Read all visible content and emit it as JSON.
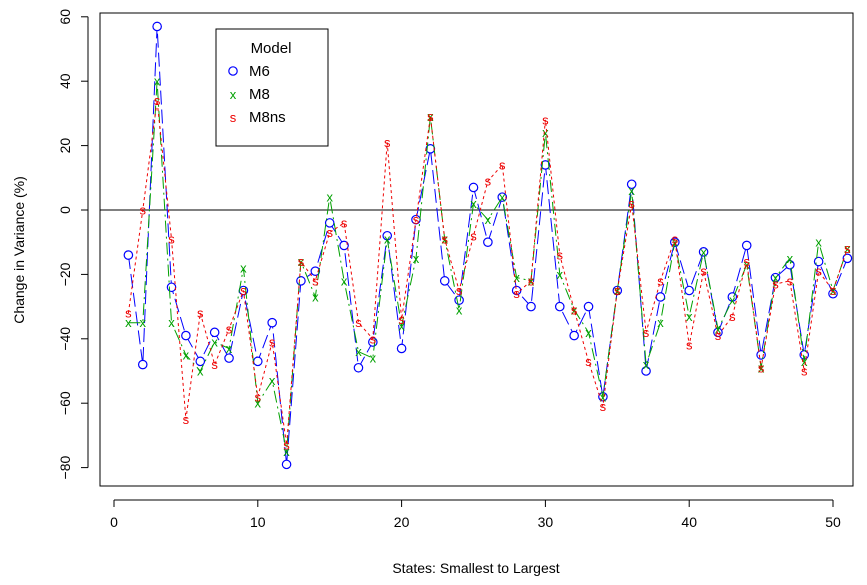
{
  "chart_data": {
    "type": "line",
    "xlabel": "States: Smallest to Largest",
    "ylabel": "Change in Variance (%)",
    "xlim": [
      0,
      52
    ],
    "ylim": [
      -85,
      62
    ],
    "xticks": [
      0,
      10,
      20,
      30,
      40,
      50
    ],
    "yticks": [
      -80,
      -60,
      -40,
      -20,
      0,
      20,
      40,
      60
    ],
    "reference_line_y": 0,
    "legend": {
      "title": "Model",
      "placement": "top-left"
    },
    "x": [
      1,
      2,
      3,
      4,
      5,
      6,
      7,
      8,
      9,
      10,
      11,
      12,
      13,
      14,
      15,
      16,
      17,
      18,
      19,
      20,
      21,
      22,
      23,
      24,
      25,
      26,
      27,
      28,
      29,
      30,
      31,
      32,
      33,
      34,
      35,
      36,
      37,
      38,
      39,
      40,
      41,
      42,
      43,
      44,
      45,
      46,
      47,
      48,
      49,
      50,
      51
    ],
    "series": [
      {
        "name": "M6",
        "marker": "o",
        "color": "#0000ff",
        "linestyle": "longdash",
        "values": [
          -14,
          -48,
          57,
          -24,
          -39,
          -47,
          -38,
          -46,
          -25,
          -47,
          -35,
          -79,
          -22,
          -19,
          -4,
          -11,
          -49,
          -41,
          -8,
          -43,
          -3,
          19,
          -22,
          -28,
          7,
          -10,
          4,
          -25,
          -30,
          14,
          -30,
          -39,
          -30,
          -58,
          -25,
          8,
          -50,
          -27,
          -10,
          -25,
          -13,
          -38,
          -27,
          -11,
          -45,
          -21,
          -17,
          -45,
          -16,
          -26,
          -15
        ]
      },
      {
        "name": "M8",
        "marker": "x",
        "color": "#00a000",
        "linestyle": "dashdot",
        "values": [
          -35,
          -35,
          40,
          -35,
          -45,
          -50,
          -41,
          -43,
          -18,
          -60,
          -53,
          -75,
          -16,
          -27,
          4,
          -22,
          -44,
          -46,
          -9,
          -36,
          -15,
          29,
          -9,
          -31,
          2,
          -3,
          4,
          -21,
          -22,
          24,
          -20,
          -31,
          -38,
          -58,
          -25,
          6,
          -48,
          -35,
          -10,
          -33,
          -13,
          -37,
          -28,
          -17,
          -49,
          -21,
          -15,
          -47,
          -10,
          -25,
          -12
        ]
      },
      {
        "name": "M8ns",
        "marker": "s",
        "color": "#ee0000",
        "linestyle": "dotted",
        "values": [
          -32,
          0,
          34,
          -9,
          -65,
          -32,
          -48,
          -37,
          -25,
          -58,
          -41,
          -73,
          -16,
          -22,
          -7,
          -4,
          -35,
          -40,
          21,
          -34,
          -3,
          29,
          -9,
          -25,
          -8,
          9,
          14,
          -26,
          -22,
          28,
          -14,
          -31,
          -47,
          -61,
          -25,
          2,
          -38,
          -22,
          -9,
          -42,
          -19,
          -39,
          -33,
          -16,
          -49,
          -23,
          -22,
          -50,
          -19,
          -25,
          -12
        ]
      }
    ]
  }
}
